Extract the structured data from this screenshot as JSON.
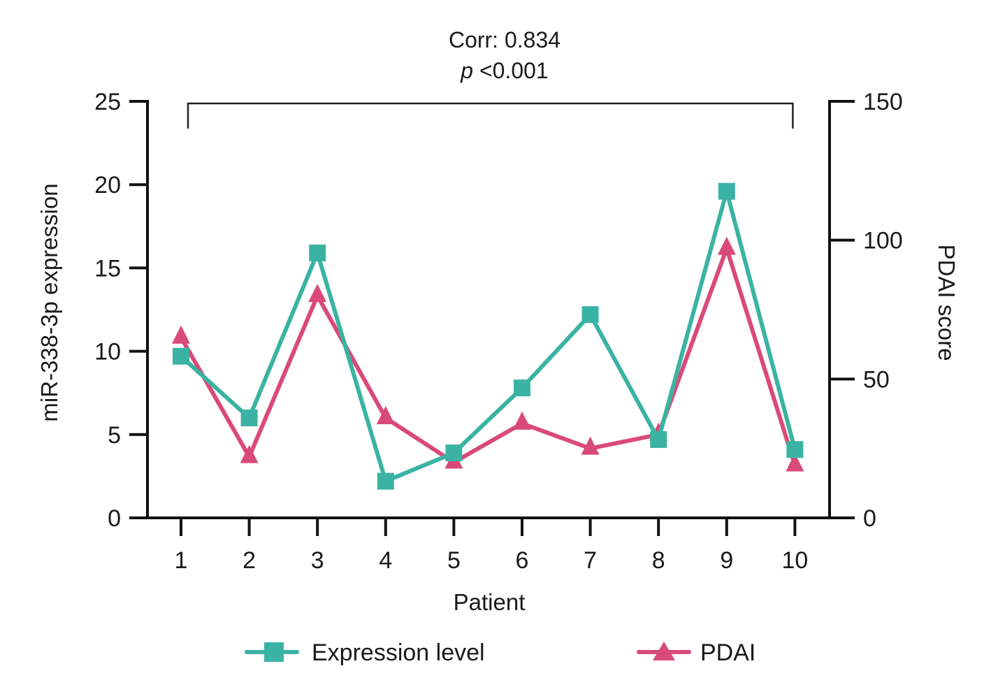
{
  "chart_data": {
    "type": "line",
    "title": "",
    "annotation": {
      "line1": "Corr: 0.834",
      "line2_italic": "p",
      "line2_rest": " <0.001"
    },
    "xlabel": "Patient",
    "ylabel_left": "miR-338-3p expression",
    "ylabel_right": "PDAI score",
    "x": [
      1,
      2,
      3,
      4,
      5,
      6,
      7,
      8,
      9,
      10
    ],
    "x_tick_labels": [
      "1",
      "2",
      "3",
      "4",
      "5",
      "6",
      "7",
      "8",
      "9",
      "10"
    ],
    "ylim_left": [
      0,
      25
    ],
    "yticks_left": [
      0,
      5,
      10,
      15,
      20,
      25
    ],
    "ylim_right": [
      0,
      150
    ],
    "yticks_right": [
      0,
      50,
      100,
      150
    ],
    "grid": false,
    "legend_position": "bottom",
    "series": [
      {
        "name": "Expression level",
        "axis": "left",
        "marker": "square",
        "color": "#3bb3a4",
        "values": [
          9.7,
          6.0,
          15.9,
          2.2,
          3.9,
          7.8,
          12.2,
          4.7,
          19.6,
          4.1
        ]
      },
      {
        "name": "PDAI",
        "axis": "right",
        "marker": "triangle",
        "color": "#d94a78",
        "values": [
          65,
          22,
          80,
          36,
          20,
          34,
          25,
          30,
          97,
          19
        ]
      }
    ],
    "bracket": {
      "from_x": 1,
      "to_x": 10
    }
  }
}
